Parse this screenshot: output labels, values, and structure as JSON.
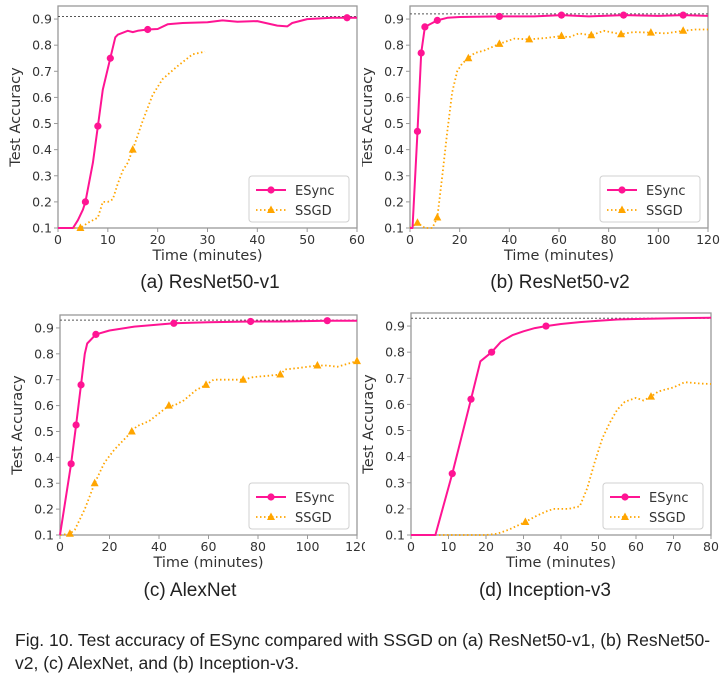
{
  "figure_caption": "Fig. 10. Test accuracy of ESync compared with SSGD on (a) ResNet50-v1, (b) ResNet50-v2, (c) AlexNet, and (b) Inception-v3.",
  "colors": {
    "esync": "#ff1493",
    "ssgd": "#ffa500",
    "reference_line": "#555555",
    "axis": "#999999"
  },
  "chart_data": [
    {
      "type": "line",
      "caption": "(a) ResNet50-v1",
      "xlabel": "Time (minutes)",
      "ylabel": "Test Accuracy",
      "xlim": [
        0,
        60
      ],
      "ylim": [
        0.1,
        0.95
      ],
      "xticks": [
        0,
        10,
        20,
        30,
        40,
        50,
        60
      ],
      "yticks": [
        0.1,
        0.2,
        0.3,
        0.4,
        0.5,
        0.6,
        0.7,
        0.8,
        0.9
      ],
      "reference_line": 0.91,
      "legend": "bottom-right",
      "series": [
        {
          "name": "ESync",
          "style": "solid",
          "marker": "circle",
          "x": [
            0,
            3,
            4,
            5,
            5.5,
            7,
            8,
            9,
            10.5,
            11.5,
            12,
            14,
            15,
            16,
            18,
            20,
            22,
            25,
            30,
            33,
            36,
            40,
            44,
            46,
            47,
            50,
            55,
            58,
            60
          ],
          "y": [
            0.1,
            0.1,
            0.13,
            0.17,
            0.2,
            0.35,
            0.49,
            0.63,
            0.75,
            0.83,
            0.84,
            0.855,
            0.85,
            0.855,
            0.86,
            0.862,
            0.88,
            0.885,
            0.888,
            0.895,
            0.89,
            0.892,
            0.875,
            0.872,
            0.885,
            0.9,
            0.905,
            0.905,
            0.905
          ],
          "marker_x": [
            5.5,
            8,
            10.5,
            18,
            58
          ]
        },
        {
          "name": "SSGD",
          "style": "dotted",
          "marker": "triangle",
          "x": [
            0,
            4.5,
            6,
            8,
            9,
            10,
            11,
            12,
            13,
            14,
            15,
            17,
            19,
            21,
            24,
            27,
            29.5
          ],
          "y": [
            0.1,
            0.1,
            0.12,
            0.14,
            0.2,
            0.2,
            0.21,
            0.27,
            0.32,
            0.35,
            0.4,
            0.51,
            0.61,
            0.67,
            0.72,
            0.765,
            0.775
          ],
          "marker_x": [
            4.5,
            15
          ]
        }
      ]
    },
    {
      "type": "line",
      "caption": "(b) ResNet50-v2",
      "xlabel": "Time (minutes)",
      "ylabel": "Test Accuracy",
      "xlim": [
        0,
        120
      ],
      "ylim": [
        0.1,
        0.95
      ],
      "xticks": [
        0,
        20,
        40,
        60,
        80,
        100,
        120
      ],
      "yticks": [
        0.1,
        0.2,
        0.3,
        0.4,
        0.5,
        0.6,
        0.7,
        0.8,
        0.9
      ],
      "reference_line": 0.92,
      "legend": "bottom-right",
      "series": [
        {
          "name": "ESync",
          "style": "solid",
          "marker": "circle",
          "x": [
            0,
            1,
            3,
            4.5,
            6,
            8,
            11,
            15,
            20,
            36,
            50,
            61,
            72,
            86,
            100,
            110,
            120
          ],
          "y": [
            0.1,
            0.1,
            0.47,
            0.77,
            0.87,
            0.88,
            0.895,
            0.905,
            0.908,
            0.91,
            0.91,
            0.915,
            0.91,
            0.915,
            0.912,
            0.915,
            0.912
          ],
          "marker_x": [
            3,
            4.5,
            6,
            11,
            36,
            61,
            86,
            110
          ]
        },
        {
          "name": "SSGD",
          "style": "dotted",
          "marker": "triangle",
          "x": [
            0,
            3,
            6,
            9,
            11,
            13,
            15,
            17,
            19,
            21,
            23.5,
            26,
            30,
            36,
            42,
            48,
            55,
            61,
            64,
            68,
            73,
            78,
            85,
            90,
            97,
            103,
            110,
            115,
            120
          ],
          "y": [
            0.1,
            0.12,
            0.1,
            0.1,
            0.14,
            0.3,
            0.47,
            0.62,
            0.7,
            0.73,
            0.75,
            0.77,
            0.78,
            0.805,
            0.825,
            0.822,
            0.828,
            0.835,
            0.83,
            0.845,
            0.838,
            0.855,
            0.842,
            0.85,
            0.848,
            0.845,
            0.855,
            0.86,
            0.86
          ],
          "marker_x": [
            3,
            11,
            23.5,
            36,
            48,
            61,
            73,
            85,
            97,
            110
          ]
        }
      ]
    },
    {
      "type": "line",
      "caption": "(c) AlexNet",
      "xlabel": "Time (minutes)",
      "ylabel": "Test Accuracy",
      "xlim": [
        0,
        120
      ],
      "ylim": [
        0.1,
        0.95
      ],
      "xticks": [
        0,
        20,
        40,
        60,
        80,
        100,
        120
      ],
      "yticks": [
        0.1,
        0.2,
        0.3,
        0.4,
        0.5,
        0.6,
        0.7,
        0.8,
        0.9
      ],
      "reference_line": 0.93,
      "legend": "bottom-right",
      "series": [
        {
          "name": "ESync",
          "style": "solid",
          "marker": "circle",
          "x": [
            0,
            4.5,
            6.5,
            8.5,
            10,
            11,
            14.5,
            20,
            30,
            46,
            60,
            77,
            90,
            108,
            120
          ],
          "y": [
            0.1,
            0.375,
            0.525,
            0.68,
            0.8,
            0.84,
            0.875,
            0.89,
            0.905,
            0.918,
            0.922,
            0.925,
            0.925,
            0.928,
            0.928
          ],
          "marker_x": [
            4.5,
            6.5,
            8.5,
            14.5,
            46,
            77,
            108
          ]
        },
        {
          "name": "SSGD",
          "style": "dotted",
          "marker": "triangle",
          "x": [
            0,
            4,
            6,
            10,
            14,
            18,
            22,
            29,
            31,
            36,
            40,
            44,
            46,
            50,
            55,
            59,
            62,
            66,
            70,
            74,
            78,
            84,
            89,
            91,
            96,
            104,
            108,
            112,
            120
          ],
          "y": [
            0.1,
            0.105,
            0.12,
            0.2,
            0.3,
            0.38,
            0.43,
            0.5,
            0.52,
            0.54,
            0.57,
            0.6,
            0.6,
            0.62,
            0.66,
            0.68,
            0.7,
            0.7,
            0.7,
            0.7,
            0.71,
            0.715,
            0.72,
            0.74,
            0.745,
            0.755,
            0.755,
            0.75,
            0.772
          ],
          "marker_x": [
            4,
            14,
            29,
            44,
            59,
            74,
            89,
            104,
            120
          ]
        }
      ]
    },
    {
      "type": "line",
      "caption": "(d) Inception-v3",
      "xlabel": "Time (minutes)",
      "ylabel": "Test Accuracy",
      "xlim": [
        0,
        80
      ],
      "ylim": [
        0.1,
        0.95
      ],
      "xticks": [
        0,
        10,
        20,
        30,
        40,
        50,
        60,
        70,
        80
      ],
      "yticks": [
        0.1,
        0.2,
        0.3,
        0.4,
        0.5,
        0.6,
        0.7,
        0.8,
        0.9
      ],
      "reference_line": 0.93,
      "legend": "bottom-right",
      "series": [
        {
          "name": "ESync",
          "style": "solid",
          "marker": "circle",
          "x": [
            0,
            6.5,
            11,
            16,
            18.5,
            21.5,
            24,
            27,
            30,
            33,
            36,
            40,
            45,
            50,
            55,
            60,
            70,
            80
          ],
          "y": [
            0.1,
            0.1,
            0.335,
            0.62,
            0.765,
            0.8,
            0.84,
            0.865,
            0.88,
            0.892,
            0.9,
            0.908,
            0.915,
            0.92,
            0.925,
            0.927,
            0.93,
            0.932
          ],
          "marker_x": [
            11,
            16,
            21.5,
            36
          ]
        },
        {
          "name": "SSGD",
          "style": "dotted",
          "marker": "triangle",
          "x": [
            0,
            10,
            20,
            23,
            26,
            30.5,
            33,
            36,
            38,
            42,
            45,
            47,
            49,
            51,
            53,
            55,
            57,
            60,
            62,
            64,
            66,
            70,
            73,
            77,
            80
          ],
          "y": [
            0.1,
            0.1,
            0.1,
            0.105,
            0.12,
            0.15,
            0.17,
            0.19,
            0.2,
            0.2,
            0.21,
            0.28,
            0.38,
            0.47,
            0.53,
            0.58,
            0.61,
            0.625,
            0.615,
            0.63,
            0.65,
            0.665,
            0.685,
            0.68,
            0.678
          ],
          "marker_x": [
            30.5,
            64
          ]
        }
      ]
    }
  ]
}
